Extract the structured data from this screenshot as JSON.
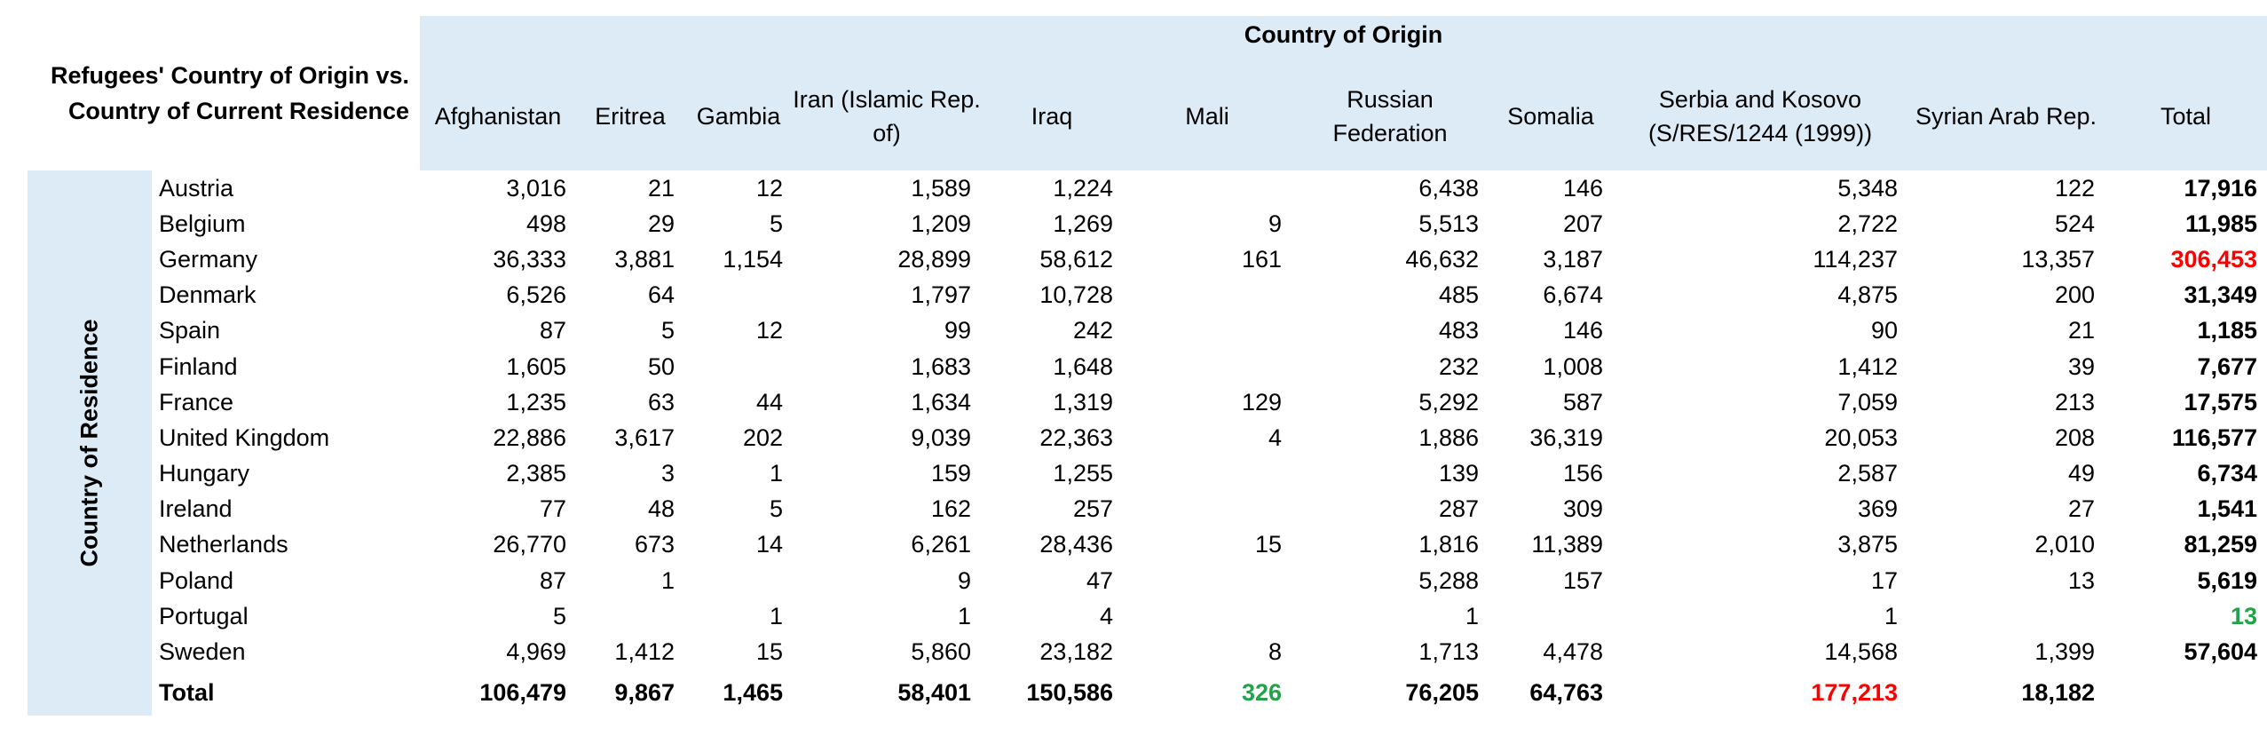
{
  "title": "Refugees' Country of Origin vs. Country of Current Residence",
  "origin_header": "Country of Origin",
  "residence_header": "Country of Residence",
  "colors": {
    "header_background": "#ddebf7",
    "highlight_max": "#ff0000",
    "highlight_min": "#22a34a"
  },
  "chart_data": {
    "type": "table",
    "title": "Refugees' Country of Origin vs. Country of Current Residence",
    "column_group_label": "Country of Origin",
    "row_group_label": "Country of Residence",
    "columns": [
      "Afghanistan",
      "Eritrea",
      "Gambia",
      "Iran (Islamic Rep. of)",
      "Iraq",
      "Mali",
      "Russian Federation",
      "Somalia",
      "Serbia and Kosovo (S/RES/1244 (1999))",
      "Syrian Arab Rep.",
      "Total"
    ],
    "rows": [
      {
        "country": "Austria",
        "values": [
          "3,016",
          "21",
          "12",
          "1,589",
          "1,224",
          "",
          "6,438",
          "146",
          "5,348",
          "122",
          "17,916"
        ],
        "total_color": ""
      },
      {
        "country": "Belgium",
        "values": [
          "498",
          "29",
          "5",
          "1,209",
          "1,269",
          "9",
          "5,513",
          "207",
          "2,722",
          "524",
          "11,985"
        ],
        "total_color": ""
      },
      {
        "country": "Germany",
        "values": [
          "36,333",
          "3,881",
          "1,154",
          "28,899",
          "58,612",
          "161",
          "46,632",
          "3,187",
          "114,237",
          "13,357",
          "306,453"
        ],
        "total_color": "#ff0000"
      },
      {
        "country": "Denmark",
        "values": [
          "6,526",
          "64",
          "",
          "1,797",
          "10,728",
          "",
          "485",
          "6,674",
          "4,875",
          "200",
          "31,349"
        ],
        "total_color": ""
      },
      {
        "country": "Spain",
        "values": [
          "87",
          "5",
          "12",
          "99",
          "242",
          "",
          "483",
          "146",
          "90",
          "21",
          "1,185"
        ],
        "total_color": ""
      },
      {
        "country": "Finland",
        "values": [
          "1,605",
          "50",
          "",
          "1,683",
          "1,648",
          "",
          "232",
          "1,008",
          "1,412",
          "39",
          "7,677"
        ],
        "total_color": ""
      },
      {
        "country": "France",
        "values": [
          "1,235",
          "63",
          "44",
          "1,634",
          "1,319",
          "129",
          "5,292",
          "587",
          "7,059",
          "213",
          "17,575"
        ],
        "total_color": ""
      },
      {
        "country": "United Kingdom",
        "values": [
          "22,886",
          "3,617",
          "202",
          "9,039",
          "22,363",
          "4",
          "1,886",
          "36,319",
          "20,053",
          "208",
          "116,577"
        ],
        "total_color": ""
      },
      {
        "country": "Hungary",
        "values": [
          "2,385",
          "3",
          "1",
          "159",
          "1,255",
          "",
          "139",
          "156",
          "2,587",
          "49",
          "6,734"
        ],
        "total_color": ""
      },
      {
        "country": "Ireland",
        "values": [
          "77",
          "48",
          "5",
          "162",
          "257",
          "",
          "287",
          "309",
          "369",
          "27",
          "1,541"
        ],
        "total_color": ""
      },
      {
        "country": "Netherlands",
        "values": [
          "26,770",
          "673",
          "14",
          "6,261",
          "28,436",
          "15",
          "1,816",
          "11,389",
          "3,875",
          "2,010",
          "81,259"
        ],
        "total_color": ""
      },
      {
        "country": "Poland",
        "values": [
          "87",
          "1",
          "",
          "9",
          "47",
          "",
          "5,288",
          "157",
          "17",
          "13",
          "5,619"
        ],
        "total_color": ""
      },
      {
        "country": "Portugal",
        "values": [
          "5",
          "",
          "1",
          "1",
          "4",
          "",
          "1",
          "",
          "1",
          "",
          "13"
        ],
        "total_color": "#22a34a"
      },
      {
        "country": "Sweden",
        "values": [
          "4,969",
          "1,412",
          "15",
          "5,860",
          "23,182",
          "8",
          "1,713",
          "4,478",
          "14,568",
          "1,399",
          "57,604"
        ],
        "total_color": ""
      }
    ],
    "totals": {
      "label": "Total",
      "values": [
        "106,479",
        "9,867",
        "1,465",
        "58,401",
        "150,586",
        "326",
        "76,205",
        "64,763",
        "177,213",
        "18,182"
      ],
      "colors": [
        "",
        "",
        "",
        "",
        "",
        "#22a34a",
        "",
        "",
        "#ff0000",
        ""
      ]
    }
  }
}
